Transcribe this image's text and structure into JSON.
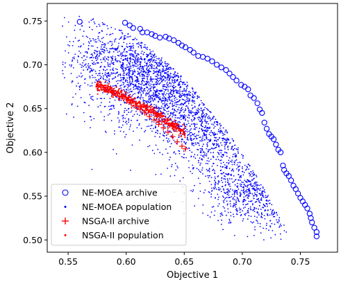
{
  "chart_data": {
    "type": "scatter",
    "xlabel": "Objective 1",
    "ylabel": "Objective 2",
    "xlim": [
      0.532,
      0.782
    ],
    "ylim": [
      0.486,
      0.77
    ],
    "xticks": [
      "0.55",
      "0.60",
      "0.65",
      "0.70",
      "0.75"
    ],
    "yticks": [
      "0.50",
      "0.55",
      "0.60",
      "0.65",
      "0.70",
      "0.75"
    ],
    "grid": false,
    "legend_position": "lower-left",
    "colors": {
      "ne_moea": "#0000ff",
      "nsga2": "#ff0000"
    },
    "series": [
      {
        "name": "NE-MOEA archive",
        "marker": "hollow-circle",
        "color": "#0000ff",
        "points": [
          [
            0.56,
            0.749
          ],
          [
            0.599,
            0.748
          ],
          [
            0.603,
            0.745
          ],
          [
            0.606,
            0.742
          ],
          [
            0.612,
            0.741
          ],
          [
            0.614,
            0.737
          ],
          [
            0.618,
            0.737
          ],
          [
            0.622,
            0.735
          ],
          [
            0.625,
            0.733
          ],
          [
            0.629,
            0.731
          ],
          [
            0.634,
            0.732
          ],
          [
            0.637,
            0.73
          ],
          [
            0.641,
            0.728
          ],
          [
            0.645,
            0.725
          ],
          [
            0.648,
            0.722
          ],
          [
            0.651,
            0.72
          ],
          [
            0.655,
            0.717
          ],
          [
            0.658,
            0.714
          ],
          [
            0.662,
            0.71
          ],
          [
            0.666,
            0.709
          ],
          [
            0.67,
            0.707
          ],
          [
            0.674,
            0.704
          ],
          [
            0.678,
            0.7
          ],
          [
            0.682,
            0.697
          ],
          [
            0.686,
            0.694
          ],
          [
            0.689,
            0.69
          ],
          [
            0.692,
            0.686
          ],
          [
            0.695,
            0.682
          ],
          [
            0.699,
            0.677
          ],
          [
            0.702,
            0.675
          ],
          [
            0.705,
            0.672
          ],
          [
            0.707,
            0.665
          ],
          [
            0.71,
            0.662
          ],
          [
            0.713,
            0.656
          ],
          [
            0.715,
            0.649
          ],
          [
            0.717,
            0.645
          ],
          [
            0.719,
            0.634
          ],
          [
            0.721,
            0.627
          ],
          [
            0.723,
            0.621
          ],
          [
            0.725,
            0.618
          ],
          [
            0.727,
            0.615
          ],
          [
            0.729,
            0.609
          ],
          [
            0.731,
            0.603
          ],
          [
            0.733,
            0.6
          ],
          [
            0.735,
            0.585
          ],
          [
            0.736,
            0.58
          ],
          [
            0.738,
            0.576
          ],
          [
            0.74,
            0.573
          ],
          [
            0.742,
            0.568
          ],
          [
            0.744,
            0.562
          ],
          [
            0.746,
            0.558
          ],
          [
            0.748,
            0.553
          ],
          [
            0.75,
            0.548
          ],
          [
            0.752,
            0.544
          ],
          [
            0.754,
            0.54
          ],
          [
            0.756,
            0.536
          ],
          [
            0.758,
            0.53
          ],
          [
            0.759,
            0.525
          ],
          [
            0.76,
            0.52
          ],
          [
            0.762,
            0.514
          ],
          [
            0.764,
            0.509
          ],
          [
            0.764,
            0.504
          ]
        ]
      },
      {
        "name": "NE-MOEA population",
        "marker": "dot",
        "color": "#0000ff",
        "points": []
      },
      {
        "name": "NSGA-II archive",
        "marker": "plus",
        "color": "#ff0000",
        "points": [
          [
            0.576,
            0.676
          ],
          [
            0.58,
            0.674
          ],
          [
            0.584,
            0.672
          ],
          [
            0.588,
            0.67
          ],
          [
            0.592,
            0.667
          ],
          [
            0.596,
            0.664
          ],
          [
            0.6,
            0.661
          ],
          [
            0.604,
            0.657
          ],
          [
            0.608,
            0.653
          ],
          [
            0.612,
            0.649
          ],
          [
            0.616,
            0.645
          ],
          [
            0.62,
            0.641
          ],
          [
            0.624,
            0.637
          ],
          [
            0.628,
            0.632
          ],
          [
            0.632,
            0.628
          ],
          [
            0.636,
            0.623
          ],
          [
            0.64,
            0.618
          ],
          [
            0.644,
            0.612
          ],
          [
            0.648,
            0.607
          ],
          [
            0.651,
            0.604
          ]
        ]
      },
      {
        "name": "NSGA-II population",
        "marker": "dot",
        "color": "#ff0000",
        "points": []
      }
    ],
    "clusters": [
      {
        "series": 1,
        "cx": 0.62,
        "cy": 0.69,
        "sx": 0.032,
        "sy": 0.03,
        "n": 2400,
        "dir": -0.55
      },
      {
        "series": 1,
        "cx": 0.675,
        "cy": 0.62,
        "sx": 0.035,
        "sy": 0.025,
        "n": 1300,
        "dir": -0.8
      },
      {
        "series": 1,
        "cx": 0.715,
        "cy": 0.55,
        "sx": 0.025,
        "sy": 0.018,
        "n": 900,
        "dir": -0.4
      },
      {
        "series": 3,
        "cx": 0.612,
        "cy": 0.648,
        "sx": 0.022,
        "sy": 0.003,
        "n": 500,
        "dir": -1.0,
        "along": true
      }
    ]
  }
}
